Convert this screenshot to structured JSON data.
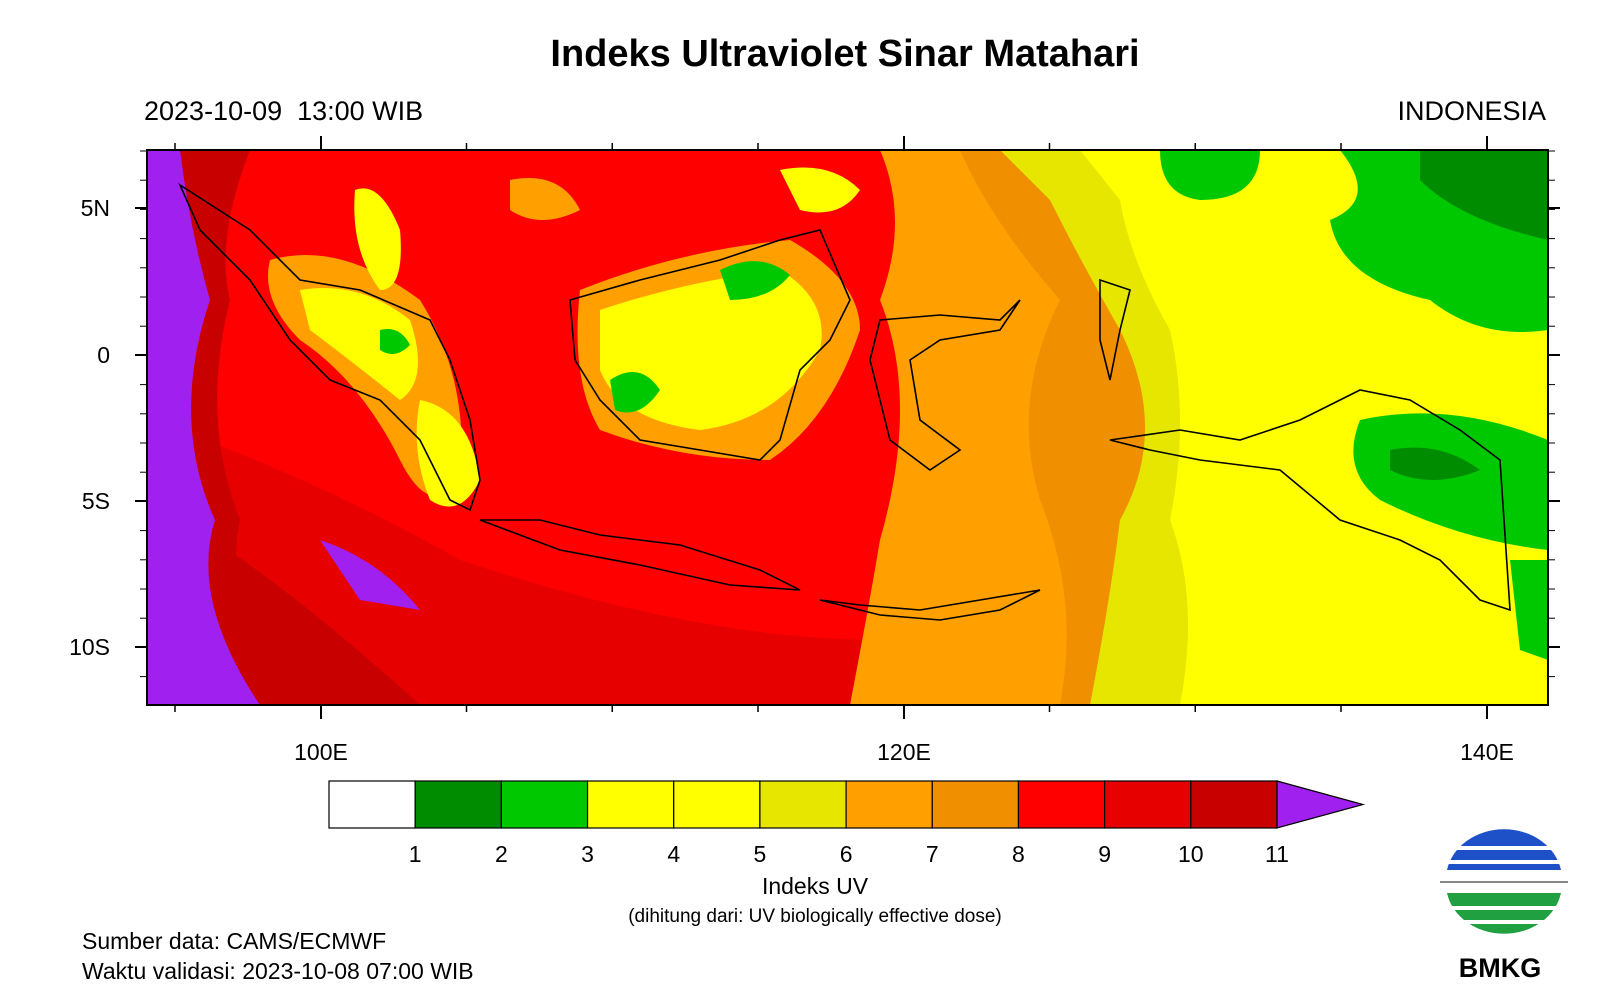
{
  "header": {
    "title": "Indeks Ultraviolet Sinar Matahari",
    "datetime": "2023-10-09  13:00 WIB",
    "region": "INDONESIA"
  },
  "map": {
    "lat_labels": [
      "5N",
      "0",
      "5S",
      "10S"
    ],
    "lon_labels": [
      "100E",
      "120E",
      "140E"
    ]
  },
  "colorbar": {
    "colors": [
      "#ffffff",
      "#008c00",
      "#00c800",
      "#ffff00",
      "#ffff00",
      "#e6e600",
      "#ffa000",
      "#f09000",
      "#ff0000",
      "#e60000",
      "#c80000",
      "#a020f0"
    ],
    "tick_labels": [
      "1",
      "2",
      "3",
      "4",
      "5",
      "6",
      "7",
      "8",
      "9",
      "10",
      "11"
    ],
    "title": "Indeks UV",
    "subtitle": "(dihitung dari: UV biologically effective dose)"
  },
  "footer": {
    "source": "Sumber data: CAMS/ECMWF",
    "validity": "Waktu validasi: 2023-10-08 07:00 WIB",
    "logo": "BMKG"
  }
}
